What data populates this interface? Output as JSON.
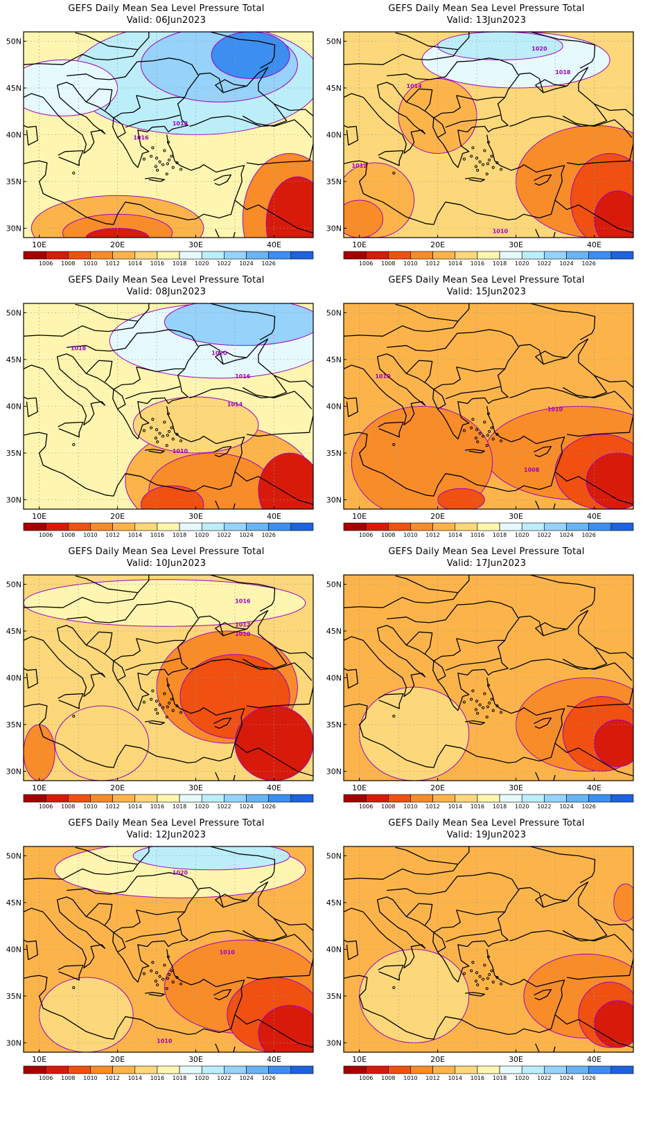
{
  "colorbar": {
    "labels": [
      "1006",
      "1008",
      "1010",
      "1012",
      "1014",
      "1016",
      "1018",
      "1020",
      "1022",
      "1024",
      "1026"
    ],
    "colors": [
      "#a50000",
      "#d81a0a",
      "#f05010",
      "#f88c28",
      "#fcb44a",
      "#fcd87a",
      "#fef6b0",
      "#e6fafe",
      "#bceefa",
      "#96d2fa",
      "#6ab4f4",
      "#3c8ef0",
      "#1e62dc"
    ]
  },
  "axes": {
    "lon_labels": [
      "10E",
      "20E",
      "30E",
      "40E"
    ],
    "lat_labels": [
      "50N",
      "45N",
      "40N",
      "35N",
      "30N"
    ]
  },
  "panels": [
    {
      "id": "p06",
      "title": "GEFS Daily Mean Sea Level Pressure Total",
      "valid": "Valid: 06Jun2023",
      "base": 6,
      "blobs": [
        {
          "cx": 20,
          "cy": 30,
          "rx": 11,
          "ry": 3.5,
          "lvl": 4
        },
        {
          "cx": 20,
          "cy": 29.5,
          "rx": 7,
          "ry": 2,
          "lvl": 3
        },
        {
          "cx": 20,
          "cy": 29,
          "rx": 4,
          "ry": 1,
          "lvl": 1
        },
        {
          "cx": 42,
          "cy": 31,
          "rx": 6,
          "ry": 7,
          "lvl": 3
        },
        {
          "cx": 43,
          "cy": 30.5,
          "rx": 4,
          "ry": 5,
          "lvl": 1
        },
        {
          "cx": 30,
          "cy": 46,
          "rx": 16,
          "ry": 6,
          "lvl": 8
        },
        {
          "cx": 33,
          "cy": 47.5,
          "rx": 10,
          "ry": 4,
          "lvl": 9
        },
        {
          "cx": 37,
          "cy": 48.5,
          "rx": 5,
          "ry": 2.5,
          "lvl": 11
        },
        {
          "cx": 13,
          "cy": 45,
          "rx": 7,
          "ry": 3,
          "lvl": 7
        }
      ],
      "contour_labels": [
        {
          "t": "1016",
          "lon": 23,
          "lat": 39.5
        },
        {
          "t": "1018",
          "lon": 28,
          "lat": 41
        }
      ]
    },
    {
      "id": "p13",
      "title": "GEFS Daily Mean Sea Level Pressure Total",
      "valid": "Valid: 13Jun2023",
      "base": 5,
      "blobs": [
        {
          "cx": 40,
          "cy": 35,
          "rx": 10,
          "ry": 6,
          "lvl": 3
        },
        {
          "cx": 42,
          "cy": 33,
          "rx": 5,
          "ry": 5,
          "lvl": 2
        },
        {
          "cx": 43,
          "cy": 31,
          "rx": 3,
          "ry": 3,
          "lvl": 1
        },
        {
          "cx": 12,
          "cy": 33,
          "rx": 5,
          "ry": 4,
          "lvl": 4
        },
        {
          "cx": 10,
          "cy": 31,
          "rx": 3,
          "ry": 2,
          "lvl": 3
        },
        {
          "cx": 30,
          "cy": 48,
          "rx": 12,
          "ry": 3,
          "lvl": 7
        },
        {
          "cx": 28,
          "cy": 49.5,
          "rx": 8,
          "ry": 1.5,
          "lvl": 8
        },
        {
          "cx": 20,
          "cy": 42,
          "rx": 5,
          "ry": 4,
          "lvl": 4
        }
      ],
      "contour_labels": [
        {
          "t": "1014",
          "lon": 17,
          "lat": 45
        },
        {
          "t": "1018",
          "lon": 36,
          "lat": 46.5
        },
        {
          "t": "1020",
          "lon": 33,
          "lat": 49
        },
        {
          "t": "1012",
          "lon": 10,
          "lat": 36.5
        },
        {
          "t": "1010",
          "lon": 28,
          "lat": 29.5
        }
      ]
    },
    {
      "id": "p08",
      "title": "GEFS Daily Mean Sea Level Pressure Total",
      "valid": "Valid: 08Jun2023",
      "base": 6,
      "blobs": [
        {
          "cx": 33,
          "cy": 32,
          "rx": 12,
          "ry": 6,
          "lvl": 4
        },
        {
          "cx": 32,
          "cy": 31,
          "rx": 8,
          "ry": 4,
          "lvl": 3
        },
        {
          "cx": 27,
          "cy": 29.5,
          "rx": 4,
          "ry": 2,
          "lvl": 2
        },
        {
          "cx": 42,
          "cy": 31,
          "rx": 4,
          "ry": 4,
          "lvl": 1
        },
        {
          "cx": 33,
          "cy": 47,
          "rx": 14,
          "ry": 4,
          "lvl": 7
        },
        {
          "cx": 36,
          "cy": 49,
          "rx": 10,
          "ry": 2.5,
          "lvl": 9
        },
        {
          "cx": 30,
          "cy": 38,
          "rx": 8,
          "ry": 3,
          "lvl": 5
        }
      ],
      "contour_labels": [
        {
          "t": "1018",
          "lon": 15,
          "lat": 46
        },
        {
          "t": "1020",
          "lon": 33,
          "lat": 45.5
        },
        {
          "t": "1016",
          "lon": 36,
          "lat": 43
        },
        {
          "t": "1014",
          "lon": 35,
          "lat": 40
        },
        {
          "t": "1010",
          "lon": 28,
          "lat": 35
        }
      ]
    },
    {
      "id": "p15",
      "title": "GEFS Daily Mean Sea Level Pressure Total",
      "valid": "Valid: 15Jun2023",
      "base": 4,
      "blobs": [
        {
          "cx": 38,
          "cy": 35,
          "rx": 12,
          "ry": 5,
          "lvl": 3
        },
        {
          "cx": 41,
          "cy": 33,
          "rx": 6,
          "ry": 4,
          "lvl": 2
        },
        {
          "cx": 43,
          "cy": 32,
          "rx": 4,
          "ry": 3,
          "lvl": 1
        },
        {
          "cx": 18,
          "cy": 34,
          "rx": 9,
          "ry": 6,
          "lvl": 3
        },
        {
          "cx": 23,
          "cy": 30,
          "rx": 3,
          "ry": 1.2,
          "lvl": 2
        }
      ],
      "contour_labels": [
        {
          "t": "1010",
          "lon": 13,
          "lat": 43
        },
        {
          "t": "1010",
          "lon": 35,
          "lat": 39.5
        },
        {
          "t": "1008",
          "lon": 32,
          "lat": 33
        }
      ]
    },
    {
      "id": "p10",
      "title": "GEFS Daily Mean Sea Level Pressure Total",
      "valid": "Valid: 10Jun2023",
      "base": 5,
      "blobs": [
        {
          "cx": 34,
          "cy": 39,
          "rx": 9,
          "ry": 6,
          "lvl": 3
        },
        {
          "cx": 35,
          "cy": 38,
          "rx": 7,
          "ry": 4.5,
          "lvl": 2
        },
        {
          "cx": 40,
          "cy": 33,
          "rx": 5,
          "ry": 4,
          "lvl": 1
        },
        {
          "cx": 18,
          "cy": 33,
          "rx": 6,
          "ry": 4,
          "lvl": 5
        },
        {
          "cx": 10,
          "cy": 32,
          "rx": 2,
          "ry": 3,
          "lvl": 3
        },
        {
          "cx": 26,
          "cy": 48,
          "rx": 18,
          "ry": 2.5,
          "lvl": 6
        }
      ],
      "contour_labels": [
        {
          "t": "1016",
          "lon": 36,
          "lat": 48
        },
        {
          "t": "1012",
          "lon": 36,
          "lat": 45.5
        },
        {
          "t": "1010",
          "lon": 36,
          "lat": 44.5
        }
      ]
    },
    {
      "id": "p17",
      "title": "GEFS Daily Mean Sea Level Pressure Total",
      "valid": "Valid: 17Jun2023",
      "base": 4,
      "blobs": [
        {
          "cx": 39,
          "cy": 35,
          "rx": 9,
          "ry": 5,
          "lvl": 3
        },
        {
          "cx": 41,
          "cy": 34,
          "rx": 5,
          "ry": 4,
          "lvl": 2
        },
        {
          "cx": 43,
          "cy": 33,
          "rx": 3,
          "ry": 2.5,
          "lvl": 1
        },
        {
          "cx": 17,
          "cy": 34,
          "rx": 7,
          "ry": 5,
          "lvl": 5
        }
      ],
      "contour_labels": []
    },
    {
      "id": "p12",
      "title": "GEFS Daily Mean Sea Level Pressure Total",
      "valid": "Valid: 12Jun2023",
      "base": 4,
      "blobs": [
        {
          "cx": 36,
          "cy": 36,
          "rx": 10,
          "ry": 5,
          "lvl": 3
        },
        {
          "cx": 40,
          "cy": 33,
          "rx": 6,
          "ry": 4,
          "lvl": 2
        },
        {
          "cx": 42,
          "cy": 31,
          "rx": 4,
          "ry": 3,
          "lvl": 1
        },
        {
          "cx": 28,
          "cy": 48.5,
          "rx": 16,
          "ry": 3,
          "lvl": 6
        },
        {
          "cx": 32,
          "cy": 50,
          "rx": 10,
          "ry": 1.5,
          "lvl": 8
        },
        {
          "cx": 16,
          "cy": 33,
          "rx": 6,
          "ry": 4,
          "lvl": 5
        }
      ],
      "contour_labels": [
        {
          "t": "1020",
          "lon": 28,
          "lat": 48
        },
        {
          "t": "1010",
          "lon": 34,
          "lat": 39.5
        },
        {
          "t": "1010",
          "lon": 26,
          "lat": 30
        }
      ]
    },
    {
      "id": "p19",
      "title": "GEFS Daily Mean Sea Level Pressure Total",
      "valid": "Valid: 19Jun2023",
      "base": 4,
      "blobs": [
        {
          "cx": 39,
          "cy": 35,
          "rx": 8,
          "ry": 4.5,
          "lvl": 3
        },
        {
          "cx": 42,
          "cy": 33,
          "rx": 4,
          "ry": 3.5,
          "lvl": 2
        },
        {
          "cx": 43,
          "cy": 32,
          "rx": 3,
          "ry": 2.5,
          "lvl": 1
        },
        {
          "cx": 17,
          "cy": 35,
          "rx": 7,
          "ry": 5,
          "lvl": 5
        },
        {
          "cx": 44,
          "cy": 45,
          "rx": 1.5,
          "ry": 2,
          "lvl": 3
        }
      ],
      "contour_labels": []
    }
  ]
}
